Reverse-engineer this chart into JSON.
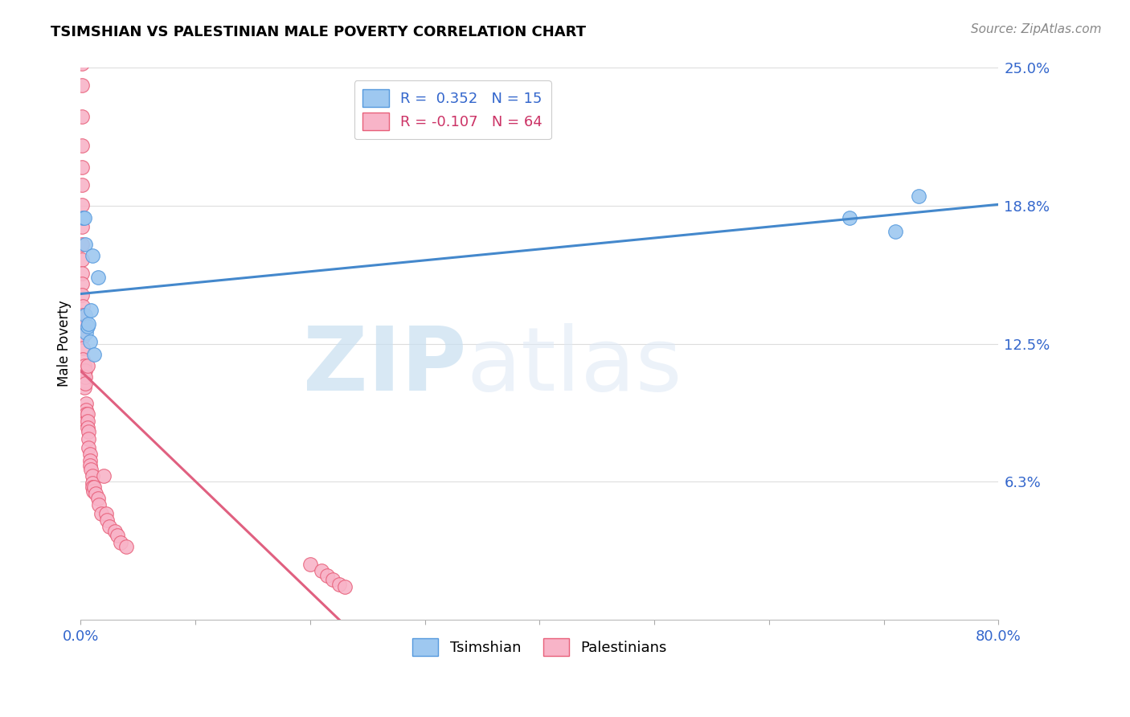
{
  "title": "TSIMSHIAN VS PALESTINIAN MALE POVERTY CORRELATION CHART",
  "source": "Source: ZipAtlas.com",
  "ylabel": "Male Poverty",
  "xlim": [
    0.0,
    0.8
  ],
  "ylim": [
    0.0,
    0.25
  ],
  "ytick_pos": [
    0.0,
    0.0625,
    0.125,
    0.1875,
    0.25
  ],
  "ytick_labels": [
    "",
    "6.3%",
    "12.5%",
    "18.8%",
    "25.0%"
  ],
  "xtick_positions": [
    0.0,
    0.1,
    0.2,
    0.3,
    0.4,
    0.5,
    0.6,
    0.7,
    0.8
  ],
  "xtick_labels": [
    "0.0%",
    "",
    "",
    "",
    "",
    "",
    "",
    "",
    "80.0%"
  ],
  "grid_color": "#dddddd",
  "watermark_zip": "ZIP",
  "watermark_atlas": "atlas",
  "tsimshian_color": "#9ec8f0",
  "palestinian_color": "#f8b4c8",
  "tsimshian_edge": "#5599dd",
  "palestinian_edge": "#e8607a",
  "line_blue": "#4488cc",
  "line_pink_solid": "#e06080",
  "line_pink_dash": "#ddb0c0",
  "legend_R1": "R =  0.352",
  "legend_N1": "N = 15",
  "legend_R2": "R = -0.107",
  "legend_N2": "N = 64",
  "tsimshian_x": [
    0.002,
    0.003,
    0.004,
    0.004,
    0.005,
    0.006,
    0.007,
    0.008,
    0.009,
    0.01,
    0.012,
    0.015,
    0.67,
    0.71,
    0.73
  ],
  "tsimshian_y": [
    0.182,
    0.182,
    0.138,
    0.17,
    0.13,
    0.133,
    0.134,
    0.126,
    0.14,
    0.165,
    0.12,
    0.155,
    0.182,
    0.176,
    0.192
  ],
  "palestinian_x": [
    0.001,
    0.001,
    0.001,
    0.001,
    0.001,
    0.001,
    0.001,
    0.001,
    0.001,
    0.001,
    0.001,
    0.001,
    0.001,
    0.002,
    0.002,
    0.002,
    0.002,
    0.002,
    0.002,
    0.003,
    0.003,
    0.003,
    0.003,
    0.004,
    0.004,
    0.004,
    0.005,
    0.005,
    0.005,
    0.005,
    0.006,
    0.006,
    0.006,
    0.006,
    0.007,
    0.007,
    0.007,
    0.008,
    0.008,
    0.008,
    0.009,
    0.01,
    0.01,
    0.01,
    0.011,
    0.012,
    0.013,
    0.015,
    0.016,
    0.018,
    0.02,
    0.022,
    0.023,
    0.025,
    0.03,
    0.032,
    0.035,
    0.04,
    0.2,
    0.21,
    0.215,
    0.22,
    0.225,
    0.23
  ],
  "palestinian_y": [
    0.252,
    0.242,
    0.228,
    0.215,
    0.205,
    0.197,
    0.188,
    0.178,
    0.17,
    0.163,
    0.157,
    0.152,
    0.147,
    0.142,
    0.138,
    0.133,
    0.128,
    0.123,
    0.118,
    0.115,
    0.112,
    0.108,
    0.105,
    0.113,
    0.11,
    0.107,
    0.098,
    0.095,
    0.093,
    0.09,
    0.115,
    0.093,
    0.09,
    0.087,
    0.085,
    0.082,
    0.078,
    0.075,
    0.072,
    0.07,
    0.068,
    0.065,
    0.062,
    0.06,
    0.058,
    0.06,
    0.057,
    0.055,
    0.052,
    0.048,
    0.065,
    0.048,
    0.045,
    0.042,
    0.04,
    0.038,
    0.035,
    0.033,
    0.025,
    0.022,
    0.02,
    0.018,
    0.016,
    0.015
  ]
}
